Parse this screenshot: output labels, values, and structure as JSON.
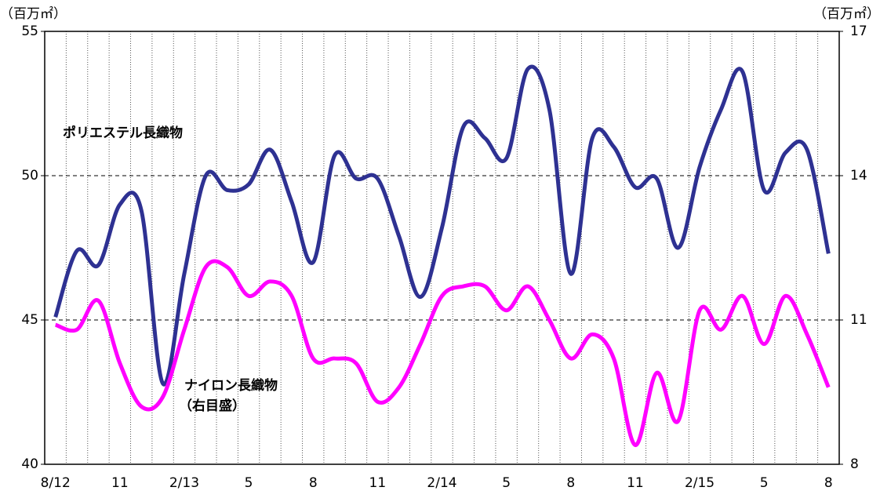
{
  "chart_data": {
    "type": "line",
    "y_unit": "（百万㎡）",
    "y2_unit": "（百万㎡）",
    "categories": [
      "8/12",
      null,
      null,
      "11",
      null,
      null,
      "2/13",
      null,
      null,
      "5",
      null,
      null,
      "8",
      null,
      null,
      "11",
      null,
      null,
      "2/14",
      null,
      null,
      "5",
      null,
      null,
      "8",
      null,
      null,
      "11",
      null,
      null,
      "2/15",
      null,
      null,
      "5",
      null,
      null,
      "8"
    ],
    "series": [
      {
        "name": "ポリエステル長織物",
        "color": "#2e3192",
        "axis": "y",
        "values": [
          45.1,
          47.4,
          46.9,
          49.0,
          48.8,
          42.8,
          46.6,
          50.0,
          49.5,
          49.7,
          50.9,
          49.1,
          47.0,
          50.7,
          49.9,
          49.9,
          47.9,
          45.8,
          48.2,
          51.7,
          51.3,
          50.6,
          53.7,
          52.3,
          46.6,
          51.3,
          51.0,
          49.6,
          49.9,
          47.5,
          50.3,
          52.3,
          53.6,
          49.5,
          50.8,
          50.9,
          47.3
        ]
      },
      {
        "name": "ナイロン長織物",
        "color": "#ff00ff",
        "axis": "y2",
        "values": [
          10.9,
          10.8,
          11.4,
          10.1,
          9.2,
          9.4,
          10.8,
          12.1,
          12.1,
          11.5,
          11.8,
          11.5,
          10.2,
          10.2,
          10.1,
          9.3,
          9.6,
          10.5,
          11.5,
          11.7,
          11.7,
          11.2,
          11.7,
          11.0,
          10.2,
          10.7,
          10.2,
          8.4,
          9.9,
          8.9,
          11.2,
          10.8,
          11.5,
          10.5,
          11.5,
          10.7,
          9.6
        ]
      }
    ],
    "annotations": [
      "（右目盛）"
    ],
    "ylim": [
      40,
      55
    ],
    "yticks": [
      40,
      45,
      50,
      55
    ],
    "y2lim": [
      8,
      17
    ],
    "y2ticks": [
      8,
      11,
      14,
      17
    ],
    "grid": true
  }
}
